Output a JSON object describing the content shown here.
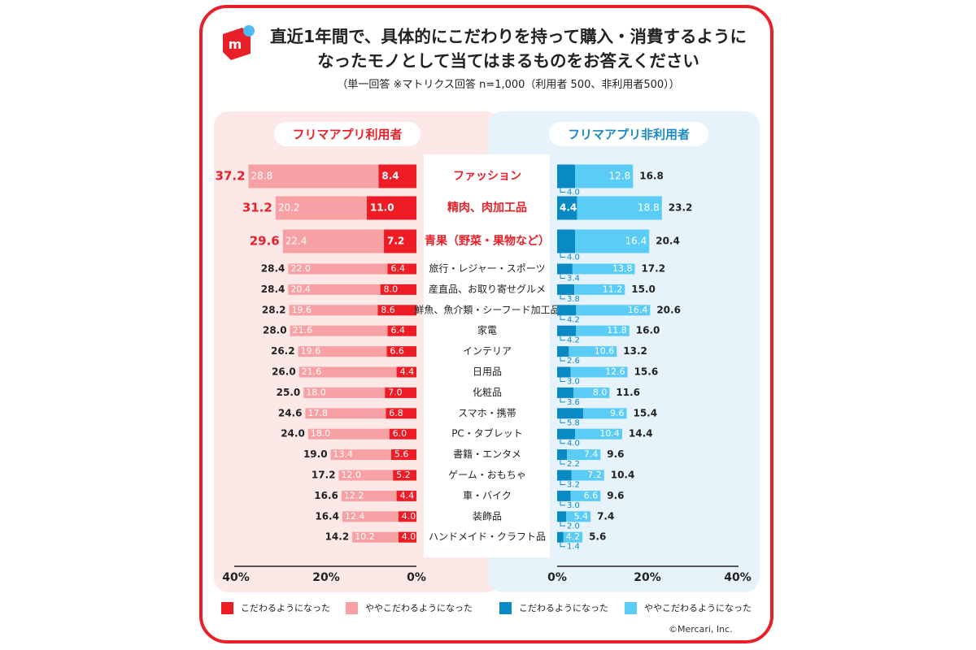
{
  "header": {
    "logo": "mercari-logo-icon",
    "title_line1": "直近1年間で、具体的にこだわりを持って購入・消費するように",
    "title_line2": "なったモノとして当てはまるものをお答えください",
    "subtitle": "（単一回答 ※マトリクス回答 n=1,000（利用者 500、非利用者500））"
  },
  "copyright": "©Mercari, Inc.",
  "colors": {
    "frame": "#e8202a",
    "left_panel": "#fde8e8",
    "right_panel": "#e6f3fa",
    "users_strong": "#ee1c25",
    "users_mild": "#f7a1a4",
    "nonusers_strong": "#0a8ac4",
    "nonusers_mild": "#5bccf5",
    "users_title": "#e8202a",
    "nonusers_title": "#1a8bc4"
  },
  "chart_data": {
    "type": "bar",
    "orientation": "horizontal-butterfly",
    "panels": {
      "left_title": "フリマアプリ利用者",
      "right_title": "フリマアプリ非利用者"
    },
    "categories": [
      "ファッション",
      "精肉、肉加工品",
      "青果（野菜・果物など）",
      "旅行・レジャー・スポーツ",
      "産直品、お取り寄せグルメ",
      "鮮魚、魚介類・シーフード加工品",
      "家電",
      "インテリア",
      "日用品",
      "化粧品",
      "スマホ・携帯",
      "PC・タブレット",
      "書籍・エンタメ",
      "ゲーム・おもちゃ",
      "車・バイク",
      "装飾品",
      "ハンドメイド・クラフト品"
    ],
    "highlight_top": 3,
    "users": {
      "strong": [
        8.4,
        11.0,
        7.2,
        6.4,
        8.0,
        8.6,
        6.4,
        6.6,
        4.4,
        7.0,
        6.8,
        6.0,
        5.6,
        5.2,
        4.4,
        4.0,
        4.0
      ],
      "strong_labels": [
        "8.4",
        "11.0",
        "7.2",
        "6.4",
        "8.0",
        "8.6",
        "6.4",
        "6.6",
        "4.4",
        "7.0",
        "6.8",
        "6.0",
        "5.6",
        "5.2",
        "4.4",
        "4.0",
        "4.0"
      ],
      "mild": [
        28.8,
        20.2,
        22.4,
        22.0,
        20.4,
        19.6,
        21.6,
        19.6,
        21.6,
        18.0,
        17.8,
        18.0,
        13.4,
        12.0,
        12.2,
        12.4,
        10.2
      ],
      "mild_labels": [
        "28.8",
        "20.2",
        "22.4",
        "22.0",
        "20.4",
        "19.6",
        "21.6",
        "19.6",
        "21.6",
        "18.0",
        "17.8",
        "18.0",
        "13.4",
        "12.0",
        "12.2",
        "12.4",
        "10.2"
      ],
      "total": [
        37.2,
        31.2,
        29.6,
        28.4,
        28.4,
        28.2,
        28.0,
        26.2,
        26.0,
        25.0,
        24.6,
        24.0,
        19.0,
        17.2,
        16.6,
        16.4,
        14.2
      ],
      "total_labels": [
        "37.2",
        "31.2",
        "29.6",
        "28.4",
        "28.4",
        "28.2",
        "28.0",
        "26.2",
        "26.0",
        "25.0",
        "24.6",
        "24.0",
        "19.0",
        "17.2",
        "16.6",
        "16.4",
        "14.2"
      ]
    },
    "nonusers": {
      "strong": [
        4.0,
        4.4,
        4.0,
        3.4,
        3.8,
        4.2,
        4.2,
        2.6,
        3.0,
        3.6,
        5.8,
        4.0,
        2.2,
        3.2,
        3.0,
        2.0,
        1.4
      ],
      "strong_labels": [
        "4.0",
        "4.4",
        "4.0",
        "3.4",
        "3.8",
        "4.2",
        "4.2",
        "2.6",
        "3.0",
        "3.6",
        "5.8",
        "4.0",
        "2.2",
        "3.2",
        "3.0",
        "2.0",
        "1.4"
      ],
      "mild": [
        12.8,
        18.8,
        16.4,
        13.8,
        11.2,
        16.4,
        11.8,
        10.6,
        12.6,
        8.0,
        9.6,
        10.4,
        7.4,
        7.2,
        6.6,
        5.4,
        4.2
      ],
      "mild_labels": [
        "12.8",
        "18.8",
        "16.4",
        "13.8",
        "11.2",
        "16.4",
        "11.8",
        "10.6",
        "12.6",
        "8.0",
        "9.6",
        "10.4",
        "7.4",
        "7.2",
        "6.6",
        "5.4",
        "4.2"
      ],
      "total": [
        16.8,
        23.2,
        20.4,
        17.2,
        15.0,
        20.6,
        16.0,
        13.2,
        15.6,
        11.6,
        15.4,
        14.4,
        9.6,
        10.4,
        9.6,
        7.4,
        5.6
      ],
      "total_labels": [
        "16.8",
        "23.2",
        "20.4",
        "17.2",
        "15.0",
        "20.6",
        "16.0",
        "13.2",
        "15.6",
        "11.6",
        "15.4",
        "14.4",
        "9.6",
        "10.4",
        "9.6",
        "7.4",
        "5.6"
      ]
    },
    "x_range": [
      0,
      40
    ],
    "left_ticks": [
      "40%",
      "20%",
      "0%"
    ],
    "right_ticks": [
      "0%",
      "20%",
      "40%"
    ],
    "legend": {
      "users_strong": "こだわるようになった",
      "users_mild": "ややこだわるようになった",
      "nonusers_strong": "こだわるようになった",
      "nonusers_mild": "ややこだわるようになった"
    }
  }
}
